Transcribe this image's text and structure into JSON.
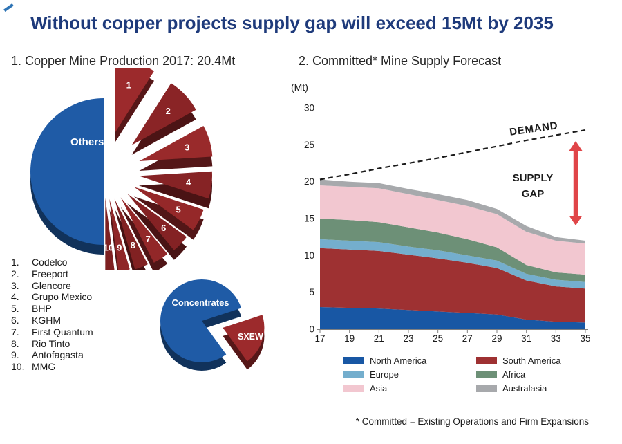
{
  "title": "Without copper projects supply gap will exceed 15Mt by 2035",
  "left_panel": {
    "heading": "1. Copper Mine Production 2017: 20.4Mt",
    "producers": [
      {
        "rank": "1.",
        "name": "Codelco"
      },
      {
        "rank": "2.",
        "name": "Freeport"
      },
      {
        "rank": "3.",
        "name": "Glencore"
      },
      {
        "rank": "4.",
        "name": "Grupo Mexico"
      },
      {
        "rank": "5.",
        "name": "BHP"
      },
      {
        "rank": "6.",
        "name": "KGHM"
      },
      {
        "rank": "7.",
        "name": "First Quantum"
      },
      {
        "rank": "8.",
        "name": "Rio Tinto"
      },
      {
        "rank": "9.",
        "name": "Antofagasta"
      },
      {
        "rank": "10.",
        "name": "MMG"
      }
    ]
  },
  "right_panel": {
    "heading": "2. Committed* Mine Supply Forecast",
    "unit_label": "(Mt)",
    "demand_label": "DEMAND",
    "supply_gap_label": "SUPPLY GAP",
    "footnote": "* Committed = Existing Operations and Firm Expansions"
  },
  "colors": {
    "title": "#1e3a7b",
    "pie_blue": "#1f5ba6",
    "pie_red": "#9c2a2c",
    "supply_gap_arrow": "#e04548",
    "axis": "#808080"
  },
  "chart_data": [
    {
      "id": "copper-mine-production-2017",
      "type": "pie",
      "title": "Copper Mine Production 2017: 20.4Mt",
      "total": "20.4Mt",
      "slices": [
        {
          "number": "1",
          "label": "Codelco",
          "value": 9,
          "color": "#9c2a2c"
        },
        {
          "number": "2",
          "label": "Freeport",
          "value": 8,
          "color": "#8a2426"
        },
        {
          "number": "3",
          "label": "Glencore",
          "value": 7,
          "color": "#992a2b"
        },
        {
          "number": "4",
          "label": "Grupo Mexico",
          "value": 6,
          "color": "#862325"
        },
        {
          "number": "5",
          "label": "BHP",
          "value": 5,
          "color": "#952829"
        },
        {
          "number": "6",
          "label": "KGHM",
          "value": 4,
          "color": "#842224"
        },
        {
          "number": "7",
          "label": "First Quantum",
          "value": 3.5,
          "color": "#922728"
        },
        {
          "number": "8",
          "label": "Rio Tinto",
          "value": 3,
          "color": "#812122"
        },
        {
          "number": "9",
          "label": "Antofagasta",
          "value": 2.5,
          "color": "#8f2627"
        },
        {
          "number": "10",
          "label": "MMG",
          "value": 2,
          "color": "#7e2021"
        },
        {
          "label": "Others",
          "value": 50,
          "color": "#1f5ba6"
        }
      ]
    },
    {
      "id": "concentrates-vs-sxew",
      "type": "pie",
      "slices": [
        {
          "label": "SXEW",
          "value": 20,
          "color": "#9c2a2c",
          "exploded": true
        },
        {
          "label": "Concentrates",
          "value": 80,
          "color": "#1f5ba6"
        }
      ]
    },
    {
      "id": "committed-mine-supply-forecast",
      "type": "area",
      "stacked": true,
      "title": "Committed* Mine Supply Forecast",
      "ylabel": "(Mt)",
      "ylim": [
        0,
        30
      ],
      "yticks": [
        0,
        5,
        10,
        15,
        20,
        25,
        30
      ],
      "x": [
        17,
        19,
        21,
        23,
        25,
        27,
        29,
        31,
        33,
        35
      ],
      "legend_position": "bottom",
      "grid": false,
      "series": [
        {
          "name": "North America",
          "color": "#1857a4",
          "values": [
            3.0,
            2.9,
            2.8,
            2.6,
            2.4,
            2.2,
            2.0,
            1.3,
            1.0,
            0.9
          ]
        },
        {
          "name": "South America",
          "color": "#9e3132",
          "values": [
            8.0,
            7.9,
            7.8,
            7.5,
            7.2,
            6.8,
            6.3,
            5.3,
            4.8,
            4.6
          ]
        },
        {
          "name": "Europe",
          "color": "#74aecd",
          "values": [
            1.2,
            1.2,
            1.2,
            1.1,
            1.1,
            1.0,
            1.0,
            0.9,
            0.9,
            0.9
          ]
        },
        {
          "name": "Africa",
          "color": "#6d9077",
          "values": [
            2.8,
            2.8,
            2.7,
            2.6,
            2.4,
            2.2,
            1.8,
            1.2,
            1.0,
            1.0
          ]
        },
        {
          "name": "Asia",
          "color": "#f2c7d0",
          "values": [
            4.5,
            4.5,
            4.6,
            4.5,
            4.4,
            4.5,
            4.5,
            4.5,
            4.3,
            4.2
          ]
        },
        {
          "name": "Australasia",
          "color": "#a7a9ac",
          "values": [
            0.8,
            0.7,
            0.7,
            0.7,
            0.8,
            0.8,
            0.7,
            0.8,
            0.5,
            0.4
          ]
        }
      ],
      "demand": {
        "name": "DEMAND",
        "style": "dashed",
        "color": "#1a1a1a",
        "values": [
          20.3,
          21.0,
          21.8,
          22.5,
          23.2,
          24.0,
          24.8,
          25.6,
          26.3,
          27.0
        ]
      },
      "annotations": {
        "supply_gap": "SUPPLY GAP"
      }
    }
  ]
}
